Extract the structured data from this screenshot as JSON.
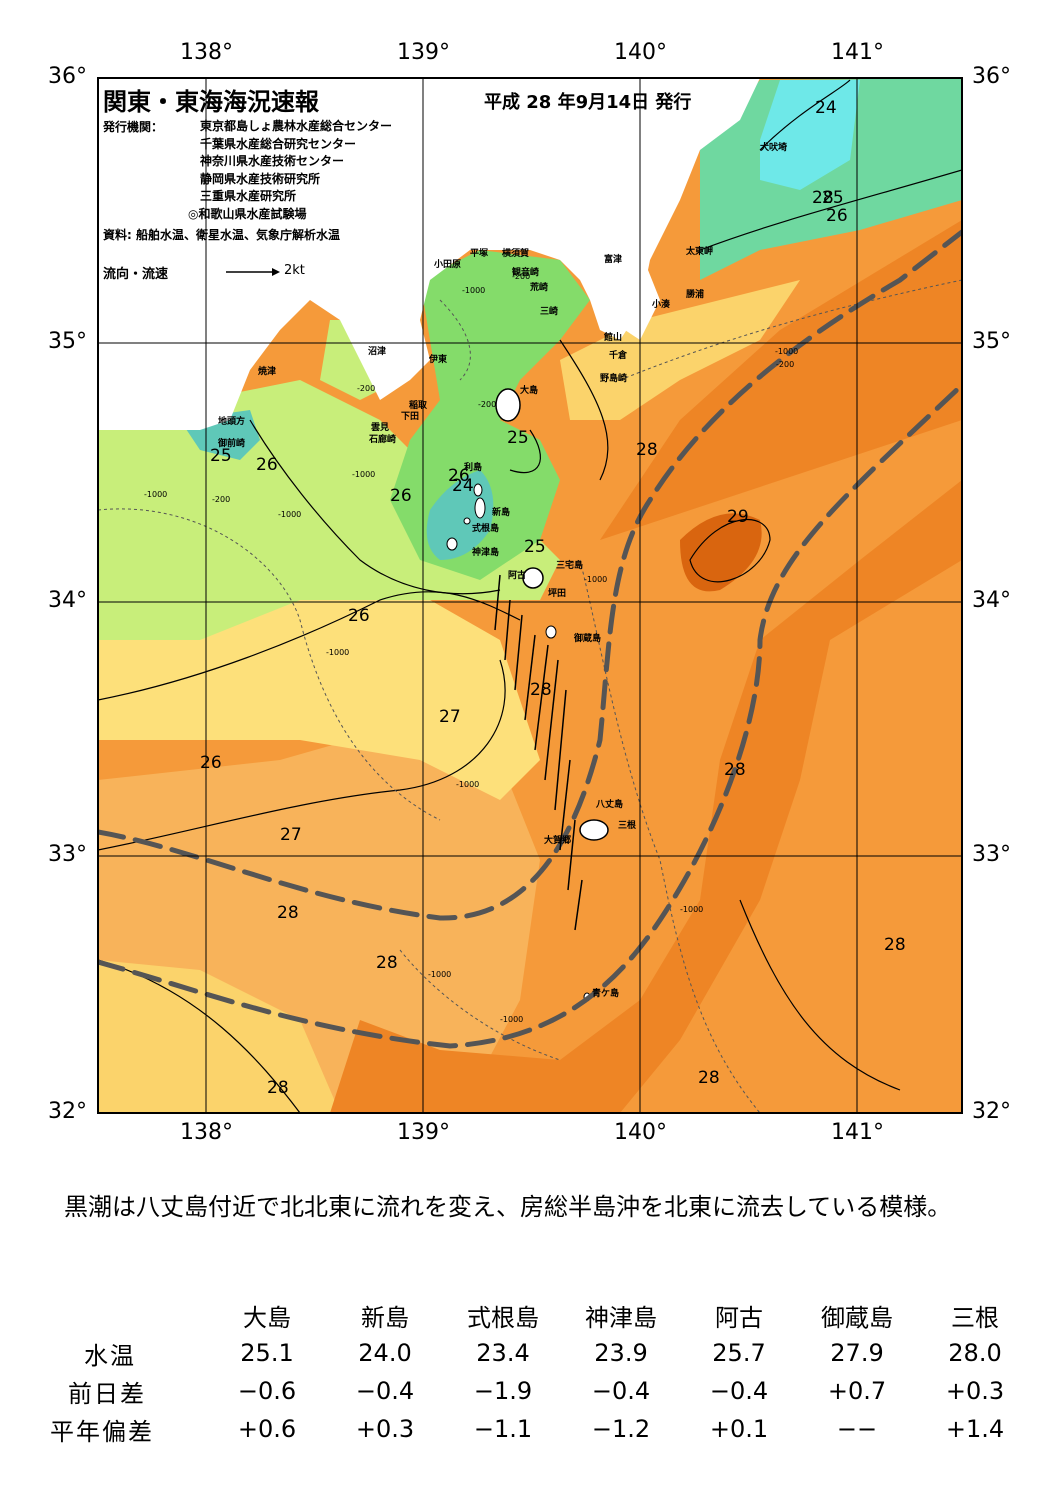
{
  "map": {
    "title": "関東・東海海況速報",
    "issue_date": "平成 28 年9月14日 発行",
    "issuer_label": "発行機関：",
    "issuers": [
      "東京都島しょ農林水産総合センター",
      "千葉県水産総合研究センター",
      "神奈川県水産技術センター",
      "静岡県水産技術研究所",
      "三重県水産研究所",
      "◎和歌山県水産試験場"
    ],
    "source": "資料: 船舶水温、衛星水温、気象庁解析水温",
    "flow_legend": "流向・流速",
    "flow_legend_unit": "2kt",
    "lon_labels": [
      "138°",
      "139°",
      "140°",
      "141°"
    ],
    "lat_labels": [
      "36°",
      "35°",
      "34°",
      "33°",
      "32°"
    ],
    "place_names": [
      "犬吠埼",
      "太東岬",
      "勝浦",
      "小湊",
      "富津",
      "横須賀",
      "平塚",
      "小田原",
      "観音崎",
      "荒崎",
      "三崎",
      "館山",
      "千倉",
      "野島崎",
      "沼津",
      "伊東",
      "焼津",
      "稲取",
      "下田",
      "雲見",
      "石廊崎",
      "地頭方",
      "御前崎",
      "大島",
      "利島",
      "新島",
      "式根島",
      "神津島",
      "三宅島",
      "阿古",
      "坪田",
      "御蔵島",
      "八丈島",
      "三根",
      "大賀郷",
      "青ケ島"
    ],
    "temp_labels": [
      "24",
      "25",
      "26",
      "25",
      "26",
      "26",
      "25",
      "24",
      "26",
      "25",
      "28",
      "29",
      "26",
      "28",
      "27",
      "26",
      "28",
      "27",
      "28",
      "28",
      "28",
      "28",
      "28",
      "28"
    ],
    "depth_labels": [
      "-200",
      "-1000"
    ]
  },
  "summary": "黒潮は八丈島付近で北北東に流れを変え、房総半島沖を北東に流去している模様。",
  "table": {
    "stations": [
      "大島",
      "新島",
      "式根島",
      "神津島",
      "阿古",
      "御蔵島",
      "三根"
    ],
    "rows": [
      {
        "label": "水温",
        "values": [
          "25.1",
          "24.0",
          "23.4",
          "23.9",
          "25.7",
          "27.9",
          "28.0"
        ]
      },
      {
        "label": "前日差",
        "values": [
          "−0.6",
          "−0.4",
          "−1.9",
          "−0.4",
          "−0.4",
          "+0.7",
          "+0.3"
        ]
      },
      {
        "label": "平年偏差",
        "values": [
          "+0.6",
          "+0.3",
          "−1.1",
          "−1.2",
          "+0.1",
          "−−",
          "+1.4"
        ]
      }
    ]
  }
}
